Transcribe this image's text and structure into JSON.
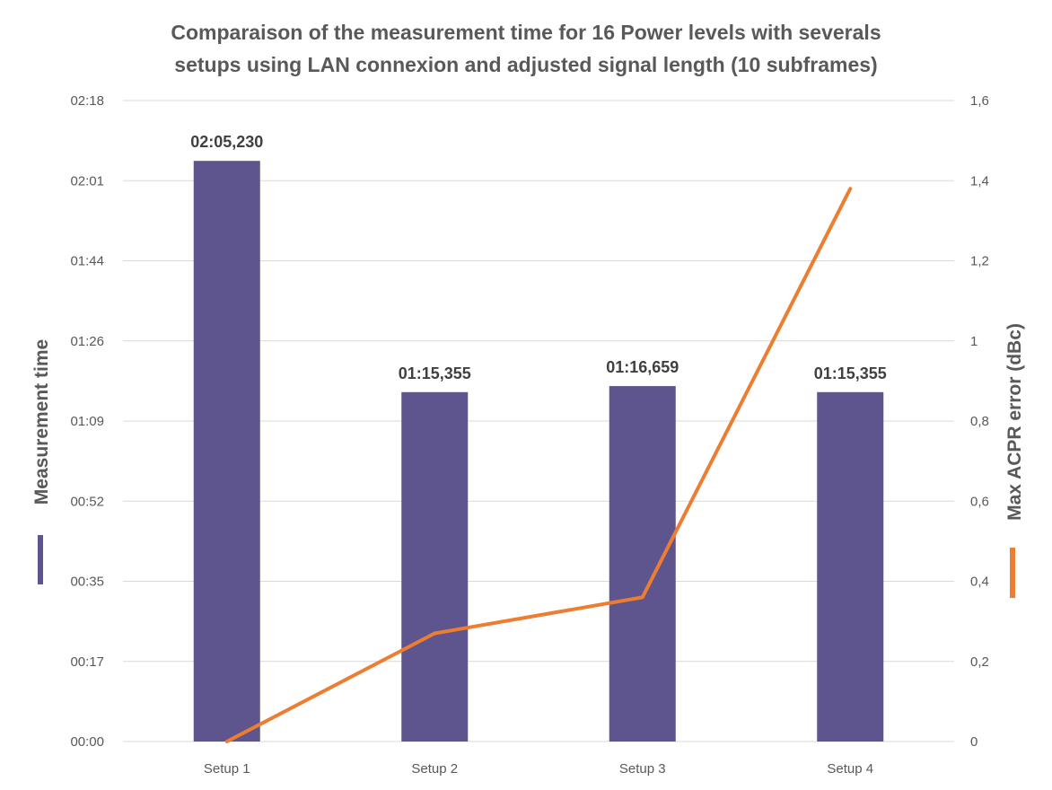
{
  "chart_data": {
    "type": "bar",
    "title": [
      "Comparaison of the measurement time  for 16 Power levels with severals",
      "setups using LAN connexion and adjusted signal length (10 subframes)"
    ],
    "categories": [
      "Setup 1",
      "Setup 2",
      "Setup 3",
      "Setup 4"
    ],
    "series": [
      {
        "name": "Measurement time",
        "type": "bar",
        "axis": "left",
        "color": "#5e548e",
        "values_seconds": [
          125.23,
          75.355,
          76.659,
          75.355
        ],
        "labels": [
          "02:05,230",
          "01:15,355",
          "01:16,659",
          "01:15,355"
        ]
      },
      {
        "name": "Max ACPR error (dBc)",
        "type": "line",
        "axis": "right",
        "color": "#ed7d31",
        "values": [
          0,
          0.27,
          0.36,
          1.38
        ]
      }
    ],
    "y_left": {
      "label": "Measurement time",
      "ticks": [
        "00:00",
        "00:17",
        "00:35",
        "00:52",
        "01:09",
        "01:26",
        "01:44",
        "02:01",
        "02:18"
      ],
      "ylim_seconds": [
        0,
        138.24
      ]
    },
    "y_right": {
      "label": "Max ACPR error (dBc)",
      "ticks": [
        "0",
        "0,2",
        "0,4",
        "0,6",
        "0,8",
        "1",
        "1,2",
        "1,4",
        "1,6"
      ],
      "ylim": [
        0,
        1.6
      ]
    },
    "grid": true,
    "legend": "none"
  }
}
